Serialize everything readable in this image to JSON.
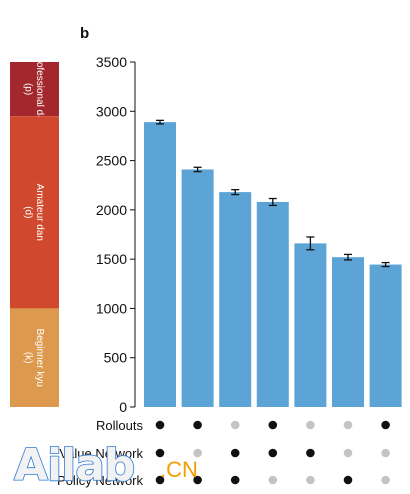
{
  "panel_letter": "b",
  "chart_data": {
    "type": "bar",
    "ylim": [
      0,
      3500
    ],
    "yticks": [
      0,
      500,
      1000,
      1500,
      2000,
      2500,
      3000,
      3500
    ],
    "values": [
      2890,
      2410,
      2180,
      2080,
      1660,
      1520,
      1445
    ],
    "errors": [
      18,
      22,
      25,
      35,
      65,
      28,
      20
    ],
    "bar_color": "#5da4d6",
    "grid": false,
    "rank_bands": [
      {
        "label": "Professional dan (p)",
        "from": 2950,
        "to": 3500,
        "color": "#a3282d"
      },
      {
        "label": "Amateur dan (d)",
        "from": 1000,
        "to": 2950,
        "color": "#d0492e"
      },
      {
        "label": "Beginner kyu (k)",
        "from": 0,
        "to": 1000,
        "color": "#dd9a4e"
      }
    ],
    "component_rows": [
      {
        "label": "Rollouts",
        "active": [
          true,
          true,
          false,
          true,
          false,
          false,
          true
        ]
      },
      {
        "label": "Value Network",
        "active": [
          true,
          false,
          true,
          true,
          true,
          false,
          false
        ]
      },
      {
        "label": "Policy Network",
        "active": [
          true,
          true,
          true,
          false,
          false,
          true,
          false
        ]
      }
    ],
    "dot_on_color": "#111111",
    "dot_off_color": "#c4c4c4"
  },
  "watermark": {
    "brand": "Ailab",
    "suffix": ".CN"
  }
}
